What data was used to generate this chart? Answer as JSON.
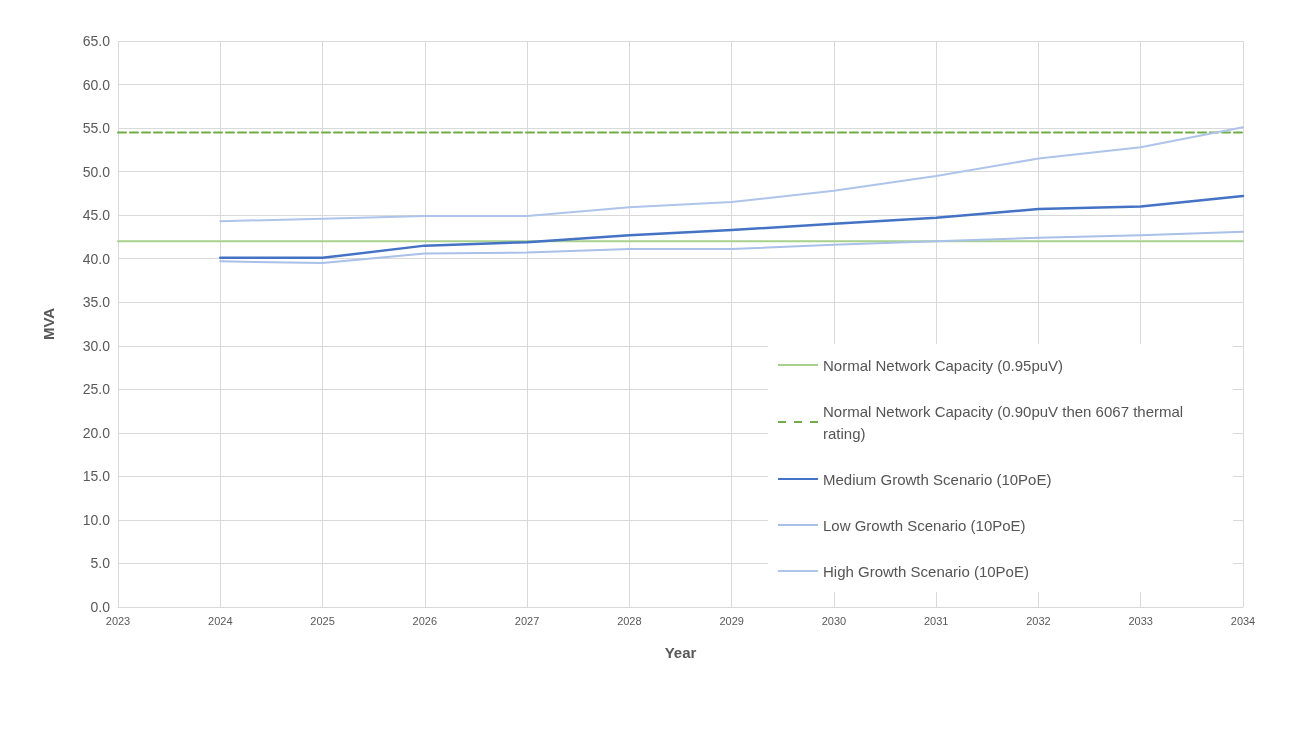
{
  "chart_data": {
    "type": "line",
    "xlabel": "Year",
    "ylabel": "MVA",
    "xlim": [
      2023,
      2034
    ],
    "xticks": [
      2023,
      2024,
      2025,
      2026,
      2027,
      2028,
      2029,
      2030,
      2031,
      2032,
      2033,
      2034
    ],
    "ylim": [
      0,
      65
    ],
    "yticks": [
      {
        "value": 0,
        "label": "0.0"
      },
      {
        "value": 5,
        "label": "5.0"
      },
      {
        "value": 10,
        "label": "10.0"
      },
      {
        "value": 15,
        "label": "15.0"
      },
      {
        "value": 20,
        "label": "20.0"
      },
      {
        "value": 25,
        "label": "25.0"
      },
      {
        "value": 30,
        "label": "30.0"
      },
      {
        "value": 35,
        "label": "35.0"
      },
      {
        "value": 40,
        "label": "40.0"
      },
      {
        "value": 45,
        "label": "45.0"
      },
      {
        "value": 50,
        "label": "50.0"
      },
      {
        "value": 55,
        "label": "55.0"
      },
      {
        "value": 60,
        "label": "60.0"
      },
      {
        "value": 65,
        "label": "65.0"
      }
    ],
    "grid": true,
    "legend": "bottom right",
    "marker": "none",
    "series": [
      {
        "name": "Normal Network Capacity (0.95puV)",
        "color": "#a9d18e",
        "x": [
          2023,
          2034
        ],
        "values": [
          42.0,
          42.0
        ]
      },
      {
        "name": "Normal Network Capacity (0.90puV then 6067 thermal rating)",
        "color": "#70ad47",
        "line_style": "dashed",
        "x": [
          2023,
          2034
        ],
        "values": [
          54.5,
          54.5
        ]
      },
      {
        "name": "Medium Growth Scenario (10PoE)",
        "color": "#4472c4",
        "x": [
          2024,
          2025,
          2026,
          2027,
          2028,
          2029,
          2030,
          2031,
          2032,
          2033,
          2034
        ],
        "values": [
          40.1,
          40.1,
          41.5,
          41.9,
          42.7,
          43.3,
          44.0,
          44.7,
          45.7,
          46.0,
          47.2
        ]
      },
      {
        "name": "Low Growth Scenario (10PoE)",
        "color": "#a9c0e8",
        "x": [
          2024,
          2025,
          2026,
          2027,
          2028,
          2029,
          2030,
          2031,
          2032,
          2033,
          2034
        ],
        "values": [
          39.7,
          39.5,
          40.6,
          40.7,
          41.1,
          41.1,
          41.6,
          42.0,
          42.4,
          42.7,
          43.1
        ]
      },
      {
        "name": "High Growth Scenario (10PoE)",
        "color": "#aec4ea",
        "x": [
          2024,
          2025,
          2026,
          2027,
          2028,
          2029,
          2030,
          2031,
          2032,
          2033,
          2034
        ],
        "values": [
          44.3,
          44.6,
          44.9,
          44.9,
          45.9,
          46.5,
          47.8,
          49.5,
          51.5,
          52.8,
          55.1
        ]
      }
    ]
  }
}
